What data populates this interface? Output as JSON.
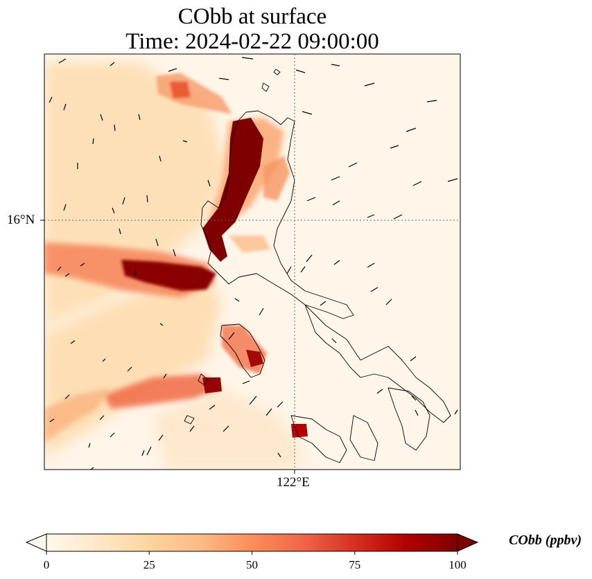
{
  "title": {
    "line1": "CObb at surface",
    "line2": "Time: 2024-02-22 09:00:00"
  },
  "map": {
    "latitude_label": "16°N",
    "longitude_label": "122°E",
    "gridlines": "dotted"
  },
  "colorbar": {
    "label": "CObb (ppbv)",
    "ticks": [
      "0",
      "25",
      "50",
      "75",
      "100"
    ],
    "min": 0,
    "max": 100,
    "colormap": "OrRd",
    "colors": [
      "#fff7ec",
      "#fee8c8",
      "#fdd49e",
      "#fdbb84",
      "#fc8d59",
      "#ef6548",
      "#d7301f",
      "#b30000",
      "#7f0000"
    ],
    "extend": "both"
  },
  "chart_data": {
    "type": "heatmap",
    "variable": "CObb",
    "units": "ppbv",
    "level": "surface",
    "time": "2024-02-22 09:00:00",
    "vmin": 0,
    "vmax": 100,
    "wind_vectors": true,
    "coastlines": true
  }
}
